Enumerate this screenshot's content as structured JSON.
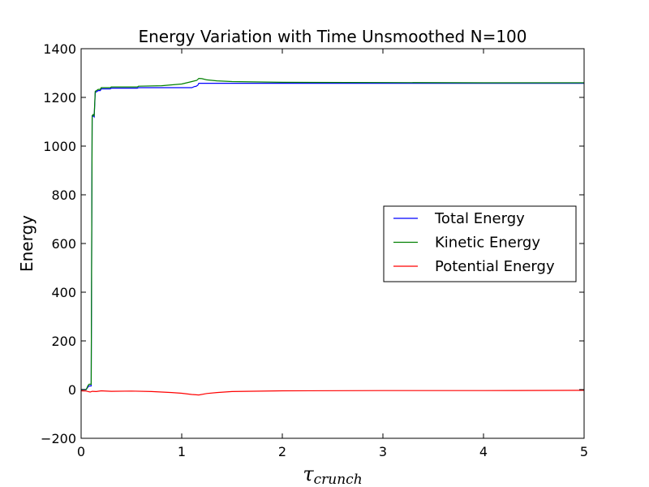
{
  "chart_data": {
    "type": "line",
    "title": "Energy Variation with Time Unsmoothed N=100",
    "xlabel_main": "τ",
    "xlabel_sub": "crunch",
    "ylabel": "Energy",
    "xlim": [
      0,
      5
    ],
    "ylim": [
      -200,
      1400
    ],
    "xticks": [
      0,
      1,
      2,
      3,
      4,
      5
    ],
    "xtick_labels": [
      "0",
      "1",
      "2",
      "3",
      "4",
      "5"
    ],
    "yticks": [
      -200,
      0,
      200,
      400,
      600,
      800,
      1000,
      1200,
      1400
    ],
    "ytick_labels": [
      "−200",
      "0",
      "200",
      "400",
      "600",
      "800",
      "1000",
      "1200",
      "1400"
    ],
    "grid": false,
    "legend_position": "center-right",
    "series": [
      {
        "name": "Total Energy",
        "color": "#0000ff",
        "x": [
          0,
          0.05,
          0.07,
          0.08,
          0.1,
          0.11,
          0.12,
          0.13,
          0.14,
          0.16,
          0.17,
          0.19,
          0.2,
          0.29,
          0.3,
          0.56,
          0.57,
          1.1,
          1.13,
          1.14,
          1.16,
          1.17,
          1.5,
          1.52,
          2,
          3,
          4,
          5
        ],
        "y": [
          0,
          0,
          12,
          15,
          15,
          1120,
          1125,
          1120,
          1220,
          1225,
          1228,
          1228,
          1235,
          1235,
          1238,
          1238,
          1240,
          1240,
          1245,
          1245,
          1250,
          1258,
          1258,
          1258,
          1258,
          1258,
          1258,
          1258
        ]
      },
      {
        "name": "Kinetic Energy",
        "color": "#008000",
        "x": [
          0,
          0.05,
          0.07,
          0.08,
          0.1,
          0.11,
          0.12,
          0.13,
          0.14,
          0.16,
          0.17,
          0.19,
          0.2,
          0.29,
          0.3,
          0.56,
          0.57,
          0.8,
          1.0,
          1.1,
          1.15,
          1.17,
          1.2,
          1.25,
          1.35,
          1.5,
          2,
          3,
          4,
          5
        ],
        "y": [
          0,
          0,
          18,
          22,
          22,
          1125,
          1130,
          1125,
          1225,
          1230,
          1233,
          1233,
          1240,
          1240,
          1243,
          1243,
          1246,
          1248,
          1255,
          1265,
          1270,
          1278,
          1277,
          1272,
          1268,
          1265,
          1262,
          1261,
          1260,
          1260
        ]
      },
      {
        "name": "Potential Energy",
        "color": "#ff0000",
        "x": [
          0,
          0.05,
          0.07,
          0.09,
          0.11,
          0.15,
          0.2,
          0.3,
          0.5,
          0.7,
          0.9,
          1.0,
          1.1,
          1.17,
          1.25,
          1.35,
          1.5,
          2,
          3,
          4,
          5
        ],
        "y": [
          -5,
          -6,
          -8,
          -10,
          -7,
          -8,
          -5,
          -7,
          -6,
          -8,
          -12,
          -15,
          -20,
          -22,
          -16,
          -12,
          -8,
          -5,
          -4,
          -4,
          -3
        ]
      }
    ]
  }
}
